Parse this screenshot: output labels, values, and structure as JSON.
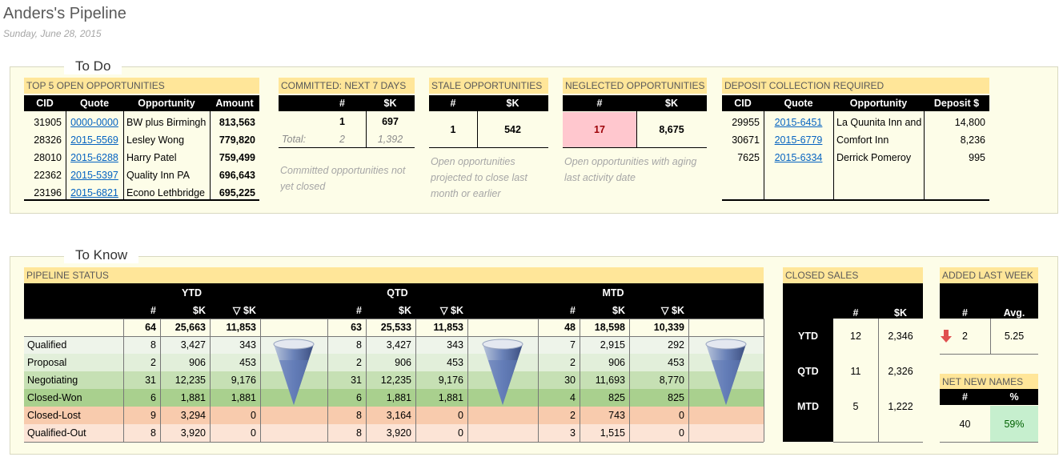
{
  "header": {
    "title": "Anders's Pipeline",
    "date": "Sunday, June 28, 2015"
  },
  "todo": {
    "label": "To Do",
    "top5": {
      "title": "TOP 5 OPEN OPPORTUNITIES",
      "columns": [
        "CID",
        "Quote",
        "Opportunity",
        "Amount"
      ],
      "rows": [
        [
          "31905",
          "0000-0000",
          "BW plus Birmingh",
          "813,563"
        ],
        [
          "28326",
          "2015-5569",
          "Lesley Wong",
          "779,820"
        ],
        [
          "28010",
          "2015-6288",
          "Harry Patel",
          "759,499"
        ],
        [
          "22362",
          "2015-5397",
          "Quality Inn PA",
          "696,643"
        ],
        [
          "23196",
          "2015-6821",
          "Econo Lethbridge",
          "695,225"
        ]
      ]
    },
    "committed": {
      "title": "COMMITTED: NEXT 7 DAYS",
      "columns": [
        "#",
        "$K"
      ],
      "row": [
        "1",
        "697"
      ],
      "total": [
        "Total:",
        "2",
        "1,392"
      ],
      "note": "Committed opportunities not yet closed"
    },
    "stale": {
      "title": "STALE OPPORTUNITIES",
      "columns": [
        "#",
        "$K"
      ],
      "row": [
        "1",
        "542"
      ],
      "note": "Open opportunities projected to close last month or earlier"
    },
    "neglected": {
      "title": "NEGLECTED OPPORTUNITIES",
      "columns": [
        "#",
        "$K"
      ],
      "row": [
        "17",
        "8,675"
      ],
      "note": "Open opportunities with aging last activity date"
    },
    "deposit": {
      "title": "DEPOSIT COLLECTION REQUIRED",
      "columns": [
        "CID",
        "Quote",
        "Opportunity",
        "Deposit $"
      ],
      "rows": [
        [
          "29955",
          "2015-6451",
          "La Quunita Inn and",
          "14,800"
        ],
        [
          "30671",
          "2015-6779",
          "Comfort Inn",
          "8,236"
        ],
        [
          "7625",
          "2015-6334",
          "Derrick Pomeroy",
          "995"
        ]
      ]
    }
  },
  "toknow": {
    "label": "To Know",
    "pipeline": {
      "title": "PIPELINE STATUS",
      "periods": [
        "YTD",
        "QTD",
        "MTD"
      ],
      "columns": [
        "#",
        "$K",
        "▽ $K"
      ],
      "totals": [
        [
          "64",
          "25,663",
          "11,853"
        ],
        [
          "63",
          "25,533",
          "11,853"
        ],
        [
          "48",
          "18,598",
          "10,339"
        ]
      ],
      "rows": [
        {
          "stage": "Qualified",
          "values": [
            [
              "8",
              "3,427",
              "343"
            ],
            [
              "8",
              "3,427",
              "343"
            ],
            [
              "7",
              "2,915",
              "292"
            ]
          ]
        },
        {
          "stage": "Proposal",
          "values": [
            [
              "2",
              "906",
              "453"
            ],
            [
              "2",
              "906",
              "453"
            ],
            [
              "2",
              "906",
              "453"
            ]
          ]
        },
        {
          "stage": "Negotiating",
          "values": [
            [
              "31",
              "12,235",
              "9,176"
            ],
            [
              "31",
              "12,235",
              "9,176"
            ],
            [
              "30",
              "11,693",
              "8,770"
            ]
          ]
        },
        {
          "stage": "Closed-Won",
          "values": [
            [
              "6",
              "1,881",
              "1,881"
            ],
            [
              "6",
              "1,881",
              "1,881"
            ],
            [
              "4",
              "825",
              "825"
            ]
          ]
        },
        {
          "stage": "Closed-Lost",
          "values": [
            [
              "9",
              "3,294",
              "0"
            ],
            [
              "8",
              "3,164",
              "0"
            ],
            [
              "2",
              "743",
              "0"
            ]
          ]
        },
        {
          "stage": "Qualified-Out",
          "values": [
            [
              "8",
              "3,920",
              "0"
            ],
            [
              "8",
              "3,920",
              "0"
            ],
            [
              "3",
              "1,515",
              "0"
            ]
          ]
        }
      ]
    },
    "closed": {
      "title": "CLOSED SALES",
      "columns": [
        "#",
        "$K"
      ],
      "rows": [
        [
          "YTD",
          "12",
          "2,346"
        ],
        [
          "QTD",
          "11",
          "2,326"
        ],
        [
          "MTD",
          "5",
          "1,222"
        ]
      ]
    },
    "added": {
      "title": "ADDED LAST WEEK",
      "columns": [
        "#",
        "Avg."
      ],
      "row": [
        "2",
        "5.25"
      ]
    },
    "netnew": {
      "title": "NET NEW NAMES",
      "columns": [
        "#",
        "%"
      ],
      "row": [
        "40",
        "59%"
      ]
    }
  }
}
